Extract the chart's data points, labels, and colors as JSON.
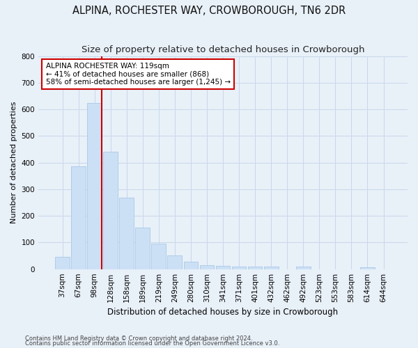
{
  "title": "ALPINA, ROCHESTER WAY, CROWBOROUGH, TN6 2DR",
  "subtitle": "Size of property relative to detached houses in Crowborough",
  "xlabel": "Distribution of detached houses by size in Crowborough",
  "ylabel": "Number of detached properties",
  "footnote1": "Contains HM Land Registry data © Crown copyright and database right 2024.",
  "footnote2": "Contains public sector information licensed under the Open Government Licence v3.0.",
  "bar_labels": [
    "37sqm",
    "67sqm",
    "98sqm",
    "128sqm",
    "158sqm",
    "189sqm",
    "219sqm",
    "249sqm",
    "280sqm",
    "310sqm",
    "341sqm",
    "371sqm",
    "401sqm",
    "432sqm",
    "462sqm",
    "492sqm",
    "523sqm",
    "553sqm",
    "583sqm",
    "614sqm",
    "644sqm"
  ],
  "bar_values": [
    47,
    385,
    625,
    440,
    268,
    155,
    97,
    52,
    28,
    15,
    12,
    10,
    10,
    10,
    0,
    10,
    0,
    0,
    0,
    7,
    0
  ],
  "bar_color": "#cce0f5",
  "bar_edge_color": "#a8c8e8",
  "grid_color": "#c8d8ea",
  "background_color": "#e8f0f8",
  "red_line_color": "#cc0000",
  "red_line_bar_index": 2,
  "annotation_text_line1": "ALPINA ROCHESTER WAY: 119sqm",
  "annotation_text_line2": "← 41% of detached houses are smaller (868)",
  "annotation_text_line3": "58% of semi-detached houses are larger (1,245) →",
  "annotation_box_color": "white",
  "annotation_box_edge": "#cc0000",
  "ylim": [
    0,
    800
  ],
  "yticks": [
    0,
    100,
    200,
    300,
    400,
    500,
    600,
    700,
    800
  ],
  "title_fontsize": 10.5,
  "subtitle_fontsize": 9.5,
  "axis_label_fontsize": 8.5,
  "tick_fontsize": 7.5,
  "annotation_fontsize": 7.5,
  "ylabel_fontsize": 8
}
